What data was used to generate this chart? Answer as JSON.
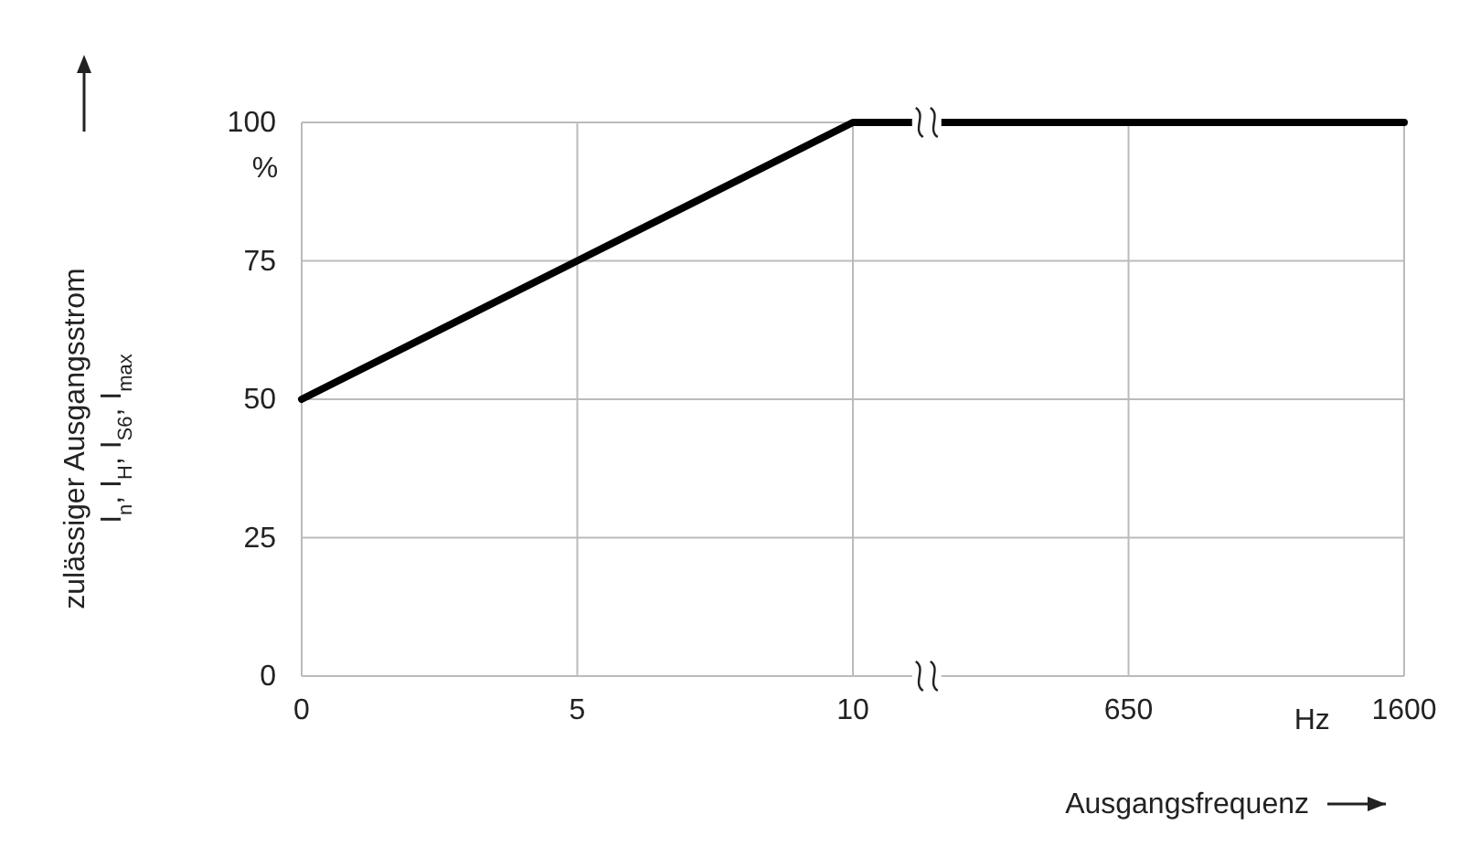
{
  "chart_data": {
    "type": "line",
    "xlabel": "Ausgangsfrequenz",
    "ylabel": "zulässiger Ausgangsstrom\nI$_{n}$, I$_{H}$, I$_{S6}$, I$_{max}$",
    "categories": [
      "0",
      "5",
      "10",
      "650",
      "1600"
    ],
    "series": [
      {
        "color": "#000000",
        "values": [
          50,
          75,
          100,
          100,
          100
        ]
      }
    ],
    "ylim": [
      0,
      100
    ],
    "yticks": [
      0,
      25,
      50,
      75,
      100
    ],
    "grid": true,
    "marker": "none",
    "line_style": "solid",
    "annotations": [
      "%",
      "Hz"
    ]
  }
}
